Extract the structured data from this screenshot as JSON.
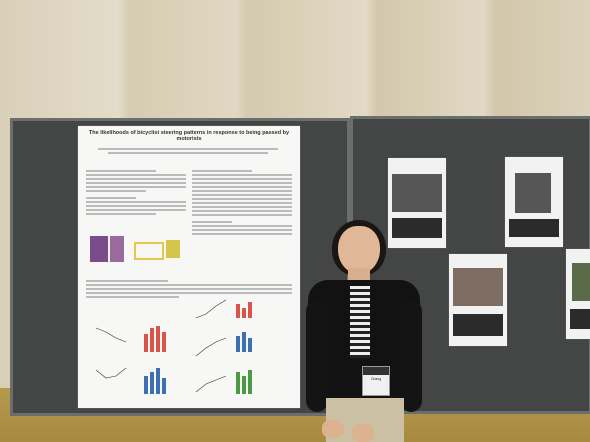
{
  "poster": {
    "title": "The likelihoods of bicyclist steering patterns in response to being passed by motorists"
  },
  "badge": {
    "name": "Chang"
  },
  "colors": {
    "board": "#444646",
    "wall": "#ddd5bf",
    "carpet": "#b09344",
    "bar_red": "#d9544a",
    "bar_blue": "#3f6fb3",
    "bar_green": "#4c9a44"
  }
}
